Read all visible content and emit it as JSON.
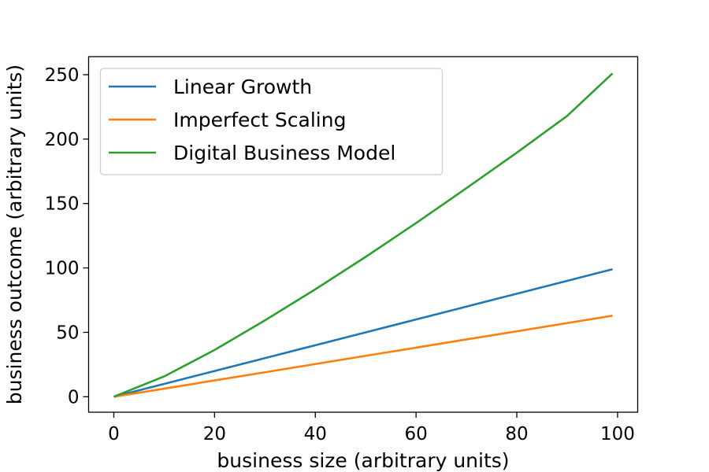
{
  "chart_data": {
    "type": "line",
    "title": "",
    "xlabel": "business size (arbitrary units)",
    "ylabel": "business outcome (arbitrary units)",
    "xlim": [
      -5,
      104
    ],
    "ylim": [
      -12,
      264
    ],
    "xticks": [
      0,
      20,
      40,
      60,
      80,
      100
    ],
    "yticks": [
      0,
      50,
      100,
      150,
      200,
      250
    ],
    "grid": false,
    "legend_position": "upper left",
    "x": [
      0,
      10,
      20,
      30,
      40,
      50,
      60,
      70,
      80,
      90,
      99
    ],
    "series": [
      {
        "name": "Linear Growth",
        "color": "#1f77b4",
        "values": [
          0,
          10,
          20,
          30,
          40,
          50,
          60,
          70,
          80,
          90,
          99
        ]
      },
      {
        "name": "Imperfect Scaling",
        "color": "#ff7f0e",
        "values": [
          0,
          6.3,
          12.7,
          19.0,
          25.4,
          31.8,
          38.1,
          44.5,
          50.8,
          57.2,
          62.9
        ]
      },
      {
        "name": "Digital Business Model",
        "color": "#2ca02c",
        "values": [
          0,
          15.8,
          36.3,
          59.3,
          83.4,
          108.6,
          134.8,
          161.9,
          189.5,
          218.0,
          251.0
        ]
      }
    ]
  }
}
